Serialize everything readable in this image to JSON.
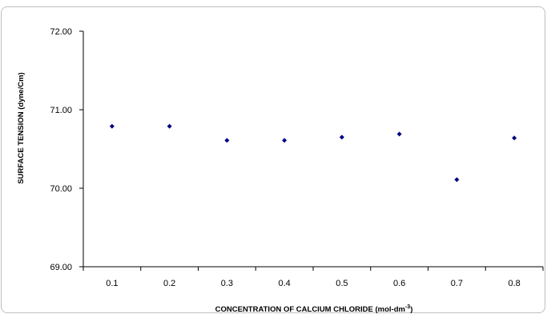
{
  "chart_data": {
    "type": "scatter",
    "title": "",
    "xlabel": "CONCENTRATION OF CALCIUM CHLORIDE (mol-dm",
    "xlabel_superscript": "-3",
    "xlabel_suffix": ")",
    "ylabel": "SURFACE TENSION (dyne/Cm)",
    "x": [
      0.1,
      0.2,
      0.3,
      0.4,
      0.5,
      0.6,
      0.7,
      0.8
    ],
    "y": [
      70.79,
      70.79,
      70.61,
      70.61,
      70.65,
      70.69,
      70.11,
      70.64
    ],
    "x_tick_labels": [
      "0.1",
      "0.2",
      "0.3",
      "0.4",
      "0.5",
      "0.6",
      "0.7",
      "0.8"
    ],
    "y_tick_labels": [
      "69.00",
      "70.00",
      "71.00",
      "72.00"
    ],
    "y_ticks": [
      69,
      70,
      71,
      72
    ],
    "ylim": [
      69,
      72
    ],
    "grid": false,
    "legend": "none",
    "marker_color": "#000080",
    "axis_color": "#000000"
  }
}
